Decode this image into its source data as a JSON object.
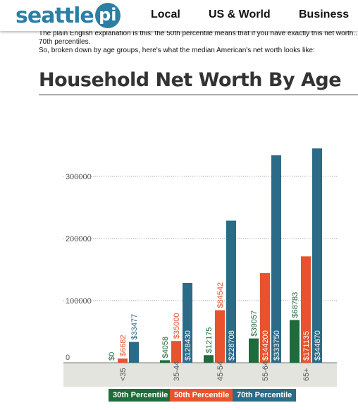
{
  "header": {
    "logo_text": "seattle",
    "logo_badge": "pi",
    "nav": [
      "Local",
      "US & World",
      "Business"
    ]
  },
  "article": {
    "line1": "The plain English explanation is this: the 50th percentile means that if you have exactly this net worth...",
    "line2": "70th percentiles.",
    "line3": "So, broken down by age groups, here's what the median American's net worth looks like:"
  },
  "chart_data": {
    "type": "bar",
    "title": "Household Net Worth By Age",
    "categories": [
      "<35",
      "35-44",
      "45-54",
      "55-64",
      "65+"
    ],
    "series": [
      {
        "name": "30th Percentile",
        "color": "#1e6b3b",
        "values": [
          0,
          4058,
          12175,
          39057,
          68783
        ],
        "labels": [
          "$0",
          "$4058",
          "$12175",
          "$39057",
          "$68783"
        ]
      },
      {
        "name": "50th Percentile",
        "color": "#e8532d",
        "values": [
          6682,
          35000,
          84542,
          144200,
          171135
        ],
        "labels": [
          "$6682",
          "$35000",
          "$84542",
          "$144200",
          "$171135"
        ]
      },
      {
        "name": "70th Percentile",
        "color": "#2c6b87",
        "values": [
          33477,
          128430,
          228708,
          333750,
          344870
        ],
        "labels": [
          "$33477",
          "$128430",
          "$228708",
          "$333750",
          "$344870"
        ]
      }
    ],
    "y_ticks": [
      {
        "value": 0,
        "label": "0"
      },
      {
        "value": 100000,
        "label": "100000"
      },
      {
        "value": 200000,
        "label": "200000"
      },
      {
        "value": 300000,
        "label": "300000"
      }
    ],
    "ylim": [
      0,
      360000
    ],
    "grid": true,
    "legend_position": "bottom"
  }
}
